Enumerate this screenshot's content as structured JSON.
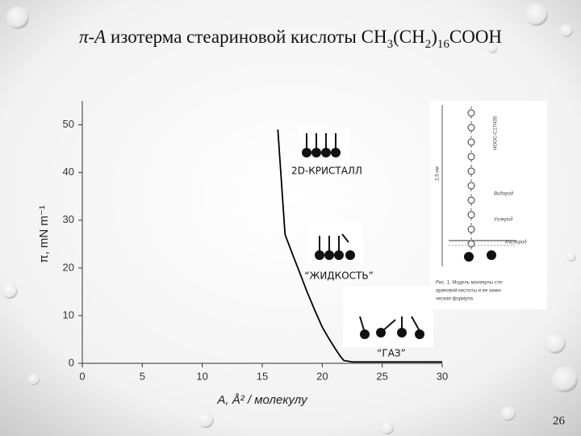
{
  "chart_data": {
    "type": "line",
    "title_parts": [
      {
        "text": "π-A",
        "italic": true
      },
      {
        "text": " изотерма стеариновой кислоты CH"
      },
      {
        "text": "3",
        "sub": true
      },
      {
        "text": "(CH"
      },
      {
        "text": "2",
        "sub": true
      },
      {
        "text": ")"
      },
      {
        "text": "16",
        "sub": true
      },
      {
        "text": "COOH"
      }
    ],
    "x_label": "A, Å² / молекулу",
    "y_label": "π, mN m⁻¹",
    "x": [
      16.3,
      16.6,
      16.9,
      17.5,
      18.2,
      18.7,
      19.4,
      20.0,
      20.6,
      21.1,
      21.5,
      21.8,
      22.5,
      25,
      30
    ],
    "y": [
      49,
      38,
      27,
      23,
      18.5,
      15.2,
      11,
      7.6,
      5,
      3,
      1.5,
      0.6,
      0.3,
      0.3,
      0.3
    ],
    "color": "#000000",
    "xlim": [
      0,
      30
    ],
    "ylim": [
      0,
      55
    ],
    "xticks": [
      0,
      5,
      10,
      15,
      20,
      25,
      30
    ],
    "yticks": [
      0,
      10,
      20,
      30,
      40,
      50
    ],
    "annotations": [
      "2D-КРИСТАЛЛ",
      "“ЖИДКОСТЬ”",
      "“ГАЗ”"
    ]
  },
  "inset": {
    "labels": [
      "2,5 нм",
      "HOOC-C17H35",
      "Водород",
      "Углерод",
      "Кислород"
    ],
    "caption": [
      "Рис. 1. Модель молекулы сте-",
      "ариновой кислоты и ее хими-",
      "ческая формула"
    ]
  },
  "page_number": "26"
}
